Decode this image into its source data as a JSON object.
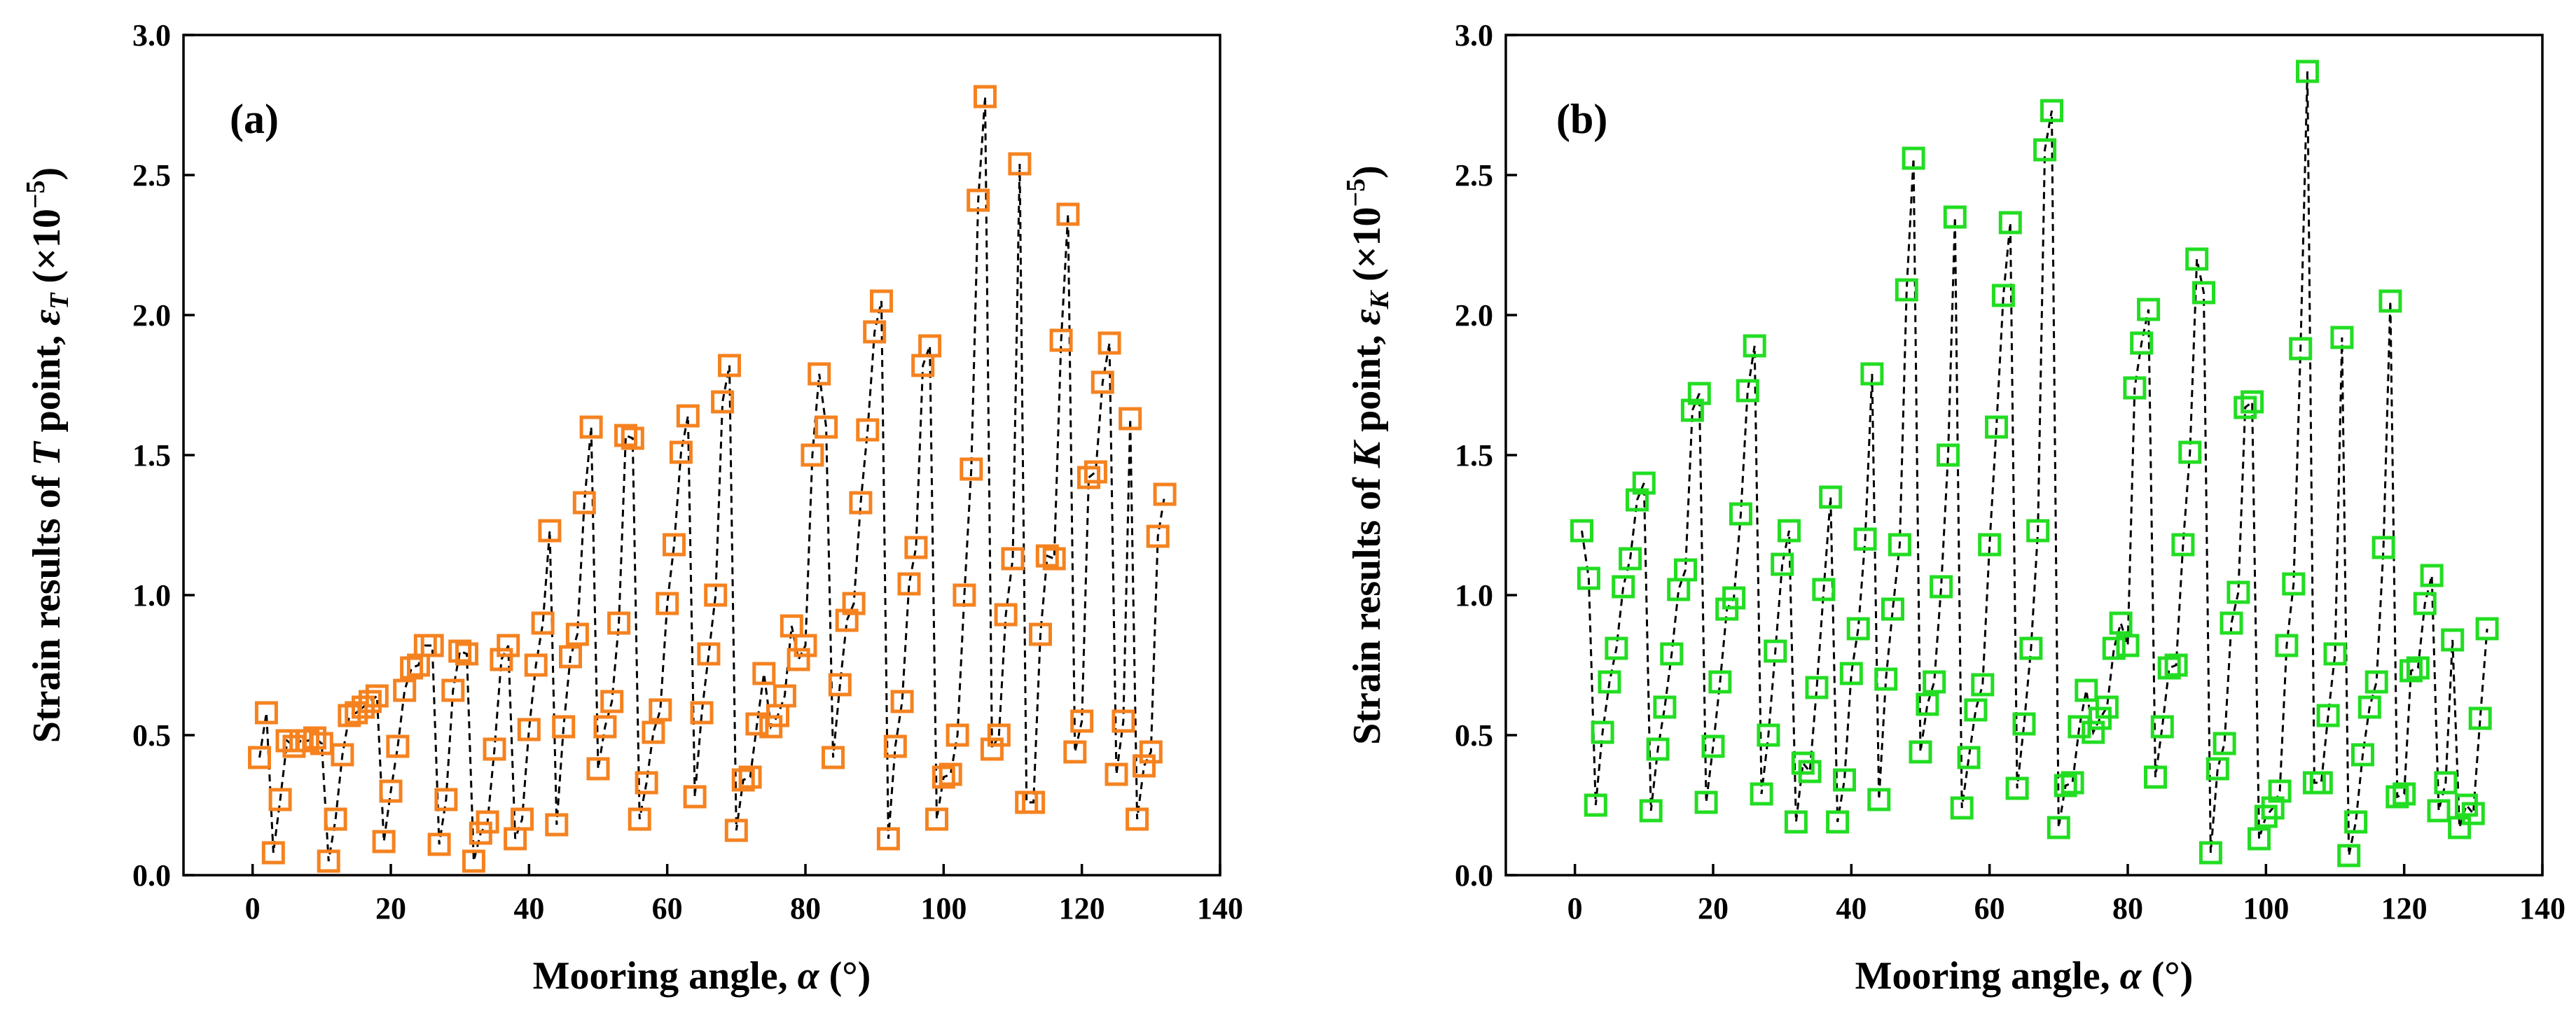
{
  "chart_data": [
    {
      "type": "scatter",
      "panel_label": "(a)",
      "title": "",
      "xlabel_prefix": "Mooring angle, ",
      "xlabel_symbol": "α",
      "xlabel_suffix": " (°)",
      "ylabel_prefix": "Strain results of ",
      "ylabel_point": "T",
      "ylabel_mid": " point, ",
      "ylabel_symbol": "ε",
      "ylabel_sub": "T",
      "ylabel_unit_open": " (×10",
      "ylabel_exp": "−5",
      "ylabel_unit_close": ")",
      "xlim": [
        -10,
        140
      ],
      "ylim": [
        0,
        3
      ],
      "xticks": [
        0,
        20,
        40,
        60,
        80,
        100,
        120,
        140
      ],
      "yticks": [
        0.0,
        0.5,
        1.0,
        1.5,
        2.0,
        2.5,
        3.0
      ],
      "xtick_labels": [
        "0",
        "20",
        "40",
        "60",
        "80",
        "100",
        "120",
        "140"
      ],
      "ytick_labels": [
        "0.0",
        "0.5",
        "1.0",
        "1.5",
        "2.0",
        "2.5",
        "3.0"
      ],
      "marker": "open-square",
      "line": "dashed",
      "grid": false,
      "series": [
        {
          "name": "T point",
          "color": "#F5821F",
          "x": [
            1,
            2,
            3,
            4,
            5,
            6,
            7,
            8,
            9,
            10,
            11,
            12,
            13,
            14,
            15,
            16,
            17,
            18,
            19,
            20,
            21,
            22,
            23,
            24,
            25,
            26,
            27,
            28,
            29,
            30,
            31,
            32,
            33,
            34,
            35,
            36,
            37,
            38,
            39,
            40,
            41,
            42,
            43,
            44,
            45,
            46,
            47,
            48,
            49,
            50,
            51,
            52,
            53,
            54,
            55,
            56,
            57,
            58,
            59,
            60,
            61,
            62,
            63,
            64,
            65,
            66,
            67,
            68,
            69,
            70,
            71,
            72,
            73,
            74,
            75,
            76,
            77,
            78,
            79,
            80,
            81,
            82,
            83,
            84,
            85,
            86,
            87,
            88,
            89,
            90,
            91,
            92,
            93,
            94,
            95,
            96,
            97,
            98,
            99,
            100,
            101,
            102,
            103,
            104,
            105,
            106,
            107,
            108,
            109,
            110,
            111,
            112,
            113,
            114,
            115,
            116,
            117,
            118,
            119,
            120,
            121,
            122,
            123,
            124,
            125,
            126,
            127,
            128,
            129,
            130,
            131,
            132
          ],
          "y": [
            0.42,
            0.58,
            0.08,
            0.27,
            0.48,
            0.46,
            0.48,
            0.48,
            0.49,
            0.47,
            0.05,
            0.2,
            0.43,
            0.57,
            0.58,
            0.6,
            0.62,
            0.64,
            0.12,
            0.3,
            0.46,
            0.66,
            0.74,
            0.75,
            0.82,
            0.82,
            0.11,
            0.27,
            0.66,
            0.8,
            0.79,
            0.05,
            0.15,
            0.19,
            0.45,
            0.77,
            0.82,
            0.13,
            0.2,
            0.52,
            0.75,
            0.9,
            1.23,
            0.18,
            0.53,
            0.78,
            0.86,
            1.33,
            1.6,
            0.38,
            0.53,
            0.62,
            0.9,
            1.57,
            1.56,
            0.2,
            0.33,
            0.51,
            0.59,
            0.97,
            1.18,
            1.51,
            1.64,
            0.28,
            0.58,
            0.79,
            1.0,
            1.69,
            1.82,
            0.16,
            0.34,
            0.35,
            0.54,
            0.72,
            0.53,
            0.57,
            0.64,
            0.89,
            0.77,
            0.82,
            1.5,
            1.79,
            1.6,
            0.42,
            0.68,
            0.91,
            0.97,
            1.33,
            1.59,
            1.94,
            2.05,
            0.13,
            0.46,
            0.62,
            1.04,
            1.17,
            1.82,
            1.89,
            0.2,
            0.35,
            0.36,
            0.5,
            1.0,
            1.45,
            2.41,
            2.78,
            0.45,
            0.5,
            0.93,
            1.13,
            2.54,
            0.26,
            0.26,
            0.86,
            1.14,
            1.13,
            1.91,
            2.36,
            0.44,
            0.55,
            1.42,
            1.44,
            1.76,
            1.9,
            0.36,
            0.55,
            1.63,
            0.2,
            0.39,
            0.44,
            1.21,
            1.36
          ]
        }
      ]
    },
    {
      "type": "scatter",
      "panel_label": "(b)",
      "title": "",
      "xlabel_prefix": "Mooring angle, ",
      "xlabel_symbol": "α",
      "xlabel_suffix": " (°)",
      "ylabel_prefix": "Strain results of ",
      "ylabel_point": "K",
      "ylabel_mid": " point, ",
      "ylabel_symbol": "ε",
      "ylabel_sub": "K",
      "ylabel_unit_open": " (×10",
      "ylabel_exp": "−5",
      "ylabel_unit_close": ")",
      "xlim": [
        -10,
        140
      ],
      "ylim": [
        0,
        3
      ],
      "xticks": [
        0,
        20,
        40,
        60,
        80,
        100,
        120,
        140
      ],
      "yticks": [
        0.0,
        0.5,
        1.0,
        1.5,
        2.0,
        2.5,
        3.0
      ],
      "xtick_labels": [
        "0",
        "20",
        "40",
        "60",
        "80",
        "100",
        "120",
        "140"
      ],
      "ytick_labels": [
        "0.0",
        "0.5",
        "1.0",
        "1.5",
        "2.0",
        "2.5",
        "3.0"
      ],
      "marker": "open-square",
      "line": "dashed",
      "grid": false,
      "series": [
        {
          "name": "K point",
          "color": "#22DD22",
          "x": [
            1,
            2,
            3,
            4,
            5,
            6,
            7,
            8,
            9,
            10,
            11,
            12,
            13,
            14,
            15,
            16,
            17,
            18,
            19,
            20,
            21,
            22,
            23,
            24,
            25,
            26,
            27,
            28,
            29,
            30,
            31,
            32,
            33,
            34,
            35,
            36,
            37,
            38,
            39,
            40,
            41,
            42,
            43,
            44,
            45,
            46,
            47,
            48,
            49,
            50,
            51,
            52,
            53,
            54,
            55,
            56,
            57,
            58,
            59,
            60,
            61,
            62,
            63,
            64,
            65,
            66,
            67,
            68,
            69,
            70,
            71,
            72,
            73,
            74,
            75,
            76,
            77,
            78,
            79,
            80,
            81,
            82,
            83,
            84,
            85,
            86,
            87,
            88,
            89,
            90,
            91,
            92,
            93,
            94,
            95,
            96,
            97,
            98,
            99,
            100,
            101,
            102,
            103,
            104,
            105,
            106,
            107,
            108,
            109,
            110,
            111,
            112,
            113,
            114,
            115,
            116,
            117,
            118,
            119,
            120,
            121,
            122,
            123,
            124,
            125,
            126,
            127,
            128,
            129,
            130,
            131,
            132
          ],
          "y": [
            1.23,
            1.06,
            0.25,
            0.51,
            0.69,
            0.81,
            1.03,
            1.13,
            1.34,
            1.4,
            0.23,
            0.45,
            0.6,
            0.79,
            1.02,
            1.09,
            1.66,
            1.72,
            0.26,
            0.46,
            0.69,
            0.95,
            0.99,
            1.29,
            1.73,
            1.89,
            0.29,
            0.5,
            0.8,
            1.11,
            1.23,
            0.19,
            0.4,
            0.37,
            0.67,
            1.02,
            1.35,
            0.19,
            0.34,
            0.72,
            0.88,
            1.2,
            1.79,
            0.27,
            0.7,
            0.95,
            1.18,
            2.09,
            2.56,
            0.44,
            0.61,
            0.69,
            1.03,
            1.5,
            2.35,
            0.24,
            0.42,
            0.59,
            0.68,
            1.18,
            1.6,
            2.07,
            2.33,
            0.31,
            0.54,
            0.81,
            1.23,
            2.59,
            2.73,
            0.17,
            0.32,
            0.33,
            0.53,
            0.66,
            0.51,
            0.56,
            0.6,
            0.81,
            0.9,
            0.82,
            1.74,
            1.9,
            2.02,
            0.35,
            0.53,
            0.74,
            0.75,
            1.18,
            1.51,
            2.2,
            2.08,
            0.08,
            0.38,
            0.47,
            0.9,
            1.01,
            1.67,
            1.69,
            0.13,
            0.21,
            0.24,
            0.3,
            0.82,
            1.04,
            1.88,
            2.87,
            0.33,
            0.33,
            0.57,
            0.79,
            1.92,
            0.07,
            0.19,
            0.43,
            0.6,
            0.69,
            1.17,
            2.05,
            0.28,
            0.29,
            0.73,
            0.74,
            0.97,
            1.07,
            0.23,
            0.33,
            0.84,
            0.17,
            0.25,
            0.22,
            0.56,
            0.88
          ]
        }
      ]
    }
  ]
}
